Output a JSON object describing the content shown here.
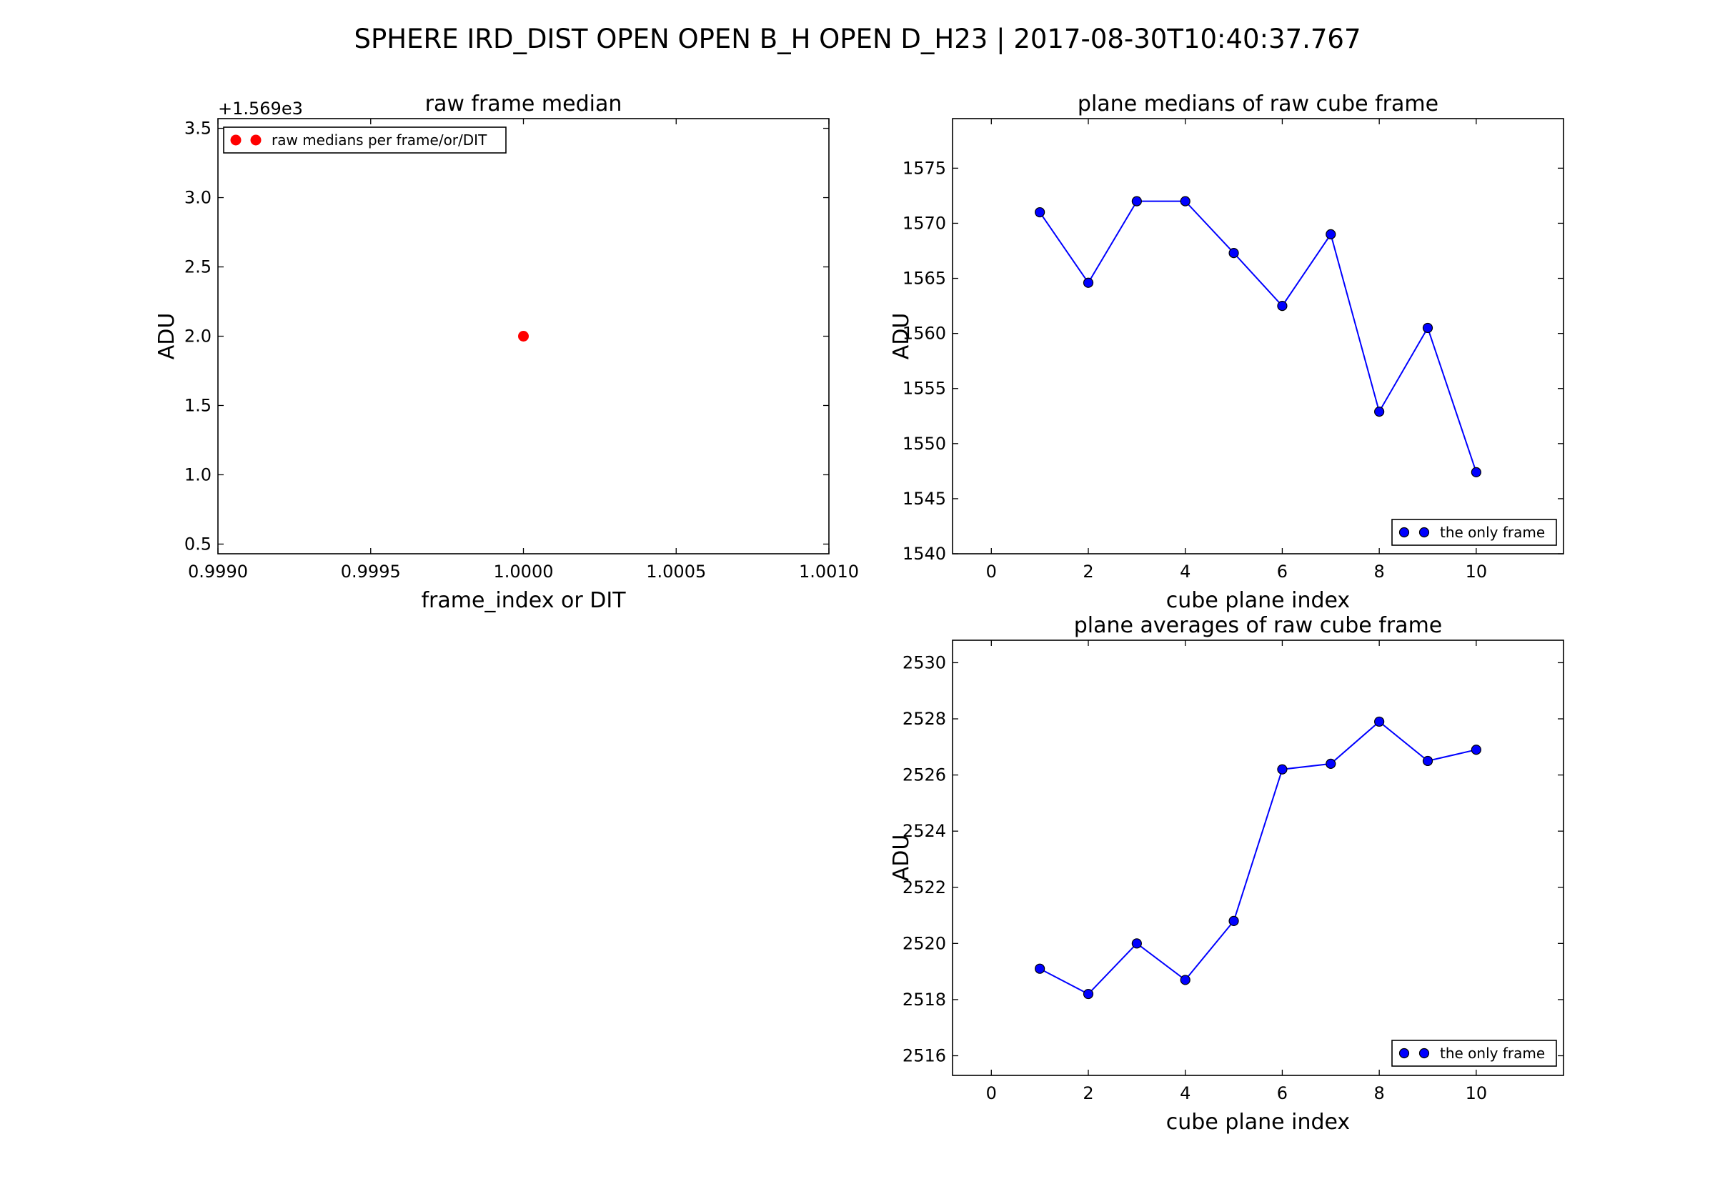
{
  "figure": {
    "title": "SPHERE IRD_DIST   OPEN  OPEN  B_H  OPEN  D_H23  |  2017-08-30T10:40:37.767"
  },
  "colors": {
    "red_series": "#ff0000",
    "blue_series": "#0000ff",
    "blue_line": "#0000ff"
  },
  "chart_data": [
    {
      "type": "scatter",
      "title": "raw frame median",
      "xlabel": "frame_index or DIT",
      "ylabel": "ADU",
      "y_offset_text": "+1.569e3",
      "xlim": [
        0.999,
        1.001
      ],
      "ylim": [
        0.43,
        3.57
      ],
      "xticks": [
        0.999,
        0.9995,
        1.0,
        1.0005,
        1.001
      ],
      "xtick_labels": [
        "0.9990",
        "0.9995",
        "1.0000",
        "1.0005",
        "1.0010"
      ],
      "yticks": [
        0.5,
        1.0,
        1.5,
        2.0,
        2.5,
        3.0,
        3.5
      ],
      "ytick_labels": [
        "0.5",
        "1.0",
        "1.5",
        "2.0",
        "2.5",
        "3.0",
        "3.5"
      ],
      "grid": false,
      "legend_position": "top-left",
      "series": [
        {
          "name": "raw medians per frame/or/DIT",
          "x": [
            1.0
          ],
          "y": [
            2.0
          ],
          "marker": "circle",
          "line": false,
          "color": "#ff0000"
        }
      ]
    },
    {
      "type": "line",
      "title": "plane medians of raw cube frame",
      "xlabel": "cube plane index",
      "ylabel": "ADU",
      "xlim": [
        -0.8,
        11.8
      ],
      "ylim": [
        1540,
        1579.5
      ],
      "xticks": [
        0,
        2,
        4,
        6,
        8,
        10
      ],
      "xtick_labels": [
        "0",
        "2",
        "4",
        "6",
        "8",
        "10"
      ],
      "yticks": [
        1540,
        1545,
        1550,
        1555,
        1560,
        1565,
        1570,
        1575
      ],
      "ytick_labels": [
        "1540",
        "1545",
        "1550",
        "1555",
        "1560",
        "1565",
        "1570",
        "1575"
      ],
      "grid": false,
      "legend_position": "bottom-right",
      "series": [
        {
          "name": "the only frame",
          "x": [
            1,
            2,
            3,
            4,
            5,
            6,
            7,
            8,
            9,
            10
          ],
          "y": [
            1571.0,
            1564.6,
            1572.0,
            1572.0,
            1567.3,
            1562.5,
            1569.0,
            1552.9,
            1560.5,
            1547.4
          ],
          "marker": "circle",
          "line": true,
          "color": "#0000ff"
        }
      ]
    },
    {
      "type": "line",
      "title": "plane averages of raw cube frame",
      "xlabel": "cube plane index",
      "ylabel": "ADU",
      "xlim": [
        -0.8,
        11.8
      ],
      "ylim": [
        2515.3,
        2530.8
      ],
      "xticks": [
        0,
        2,
        4,
        6,
        8,
        10
      ],
      "xtick_labels": [
        "0",
        "2",
        "4",
        "6",
        "8",
        "10"
      ],
      "yticks": [
        2516,
        2518,
        2520,
        2522,
        2524,
        2526,
        2528,
        2530
      ],
      "ytick_labels": [
        "2516",
        "2518",
        "2520",
        "2522",
        "2524",
        "2526",
        "2528",
        "2530"
      ],
      "grid": false,
      "legend_position": "bottom-right",
      "series": [
        {
          "name": "the only frame",
          "x": [
            1,
            2,
            3,
            4,
            5,
            6,
            7,
            8,
            9,
            10
          ],
          "y": [
            2519.1,
            2518.2,
            2520.0,
            2518.7,
            2520.8,
            2526.2,
            2526.4,
            2527.9,
            2526.5,
            2526.9
          ],
          "marker": "circle",
          "line": true,
          "color": "#0000ff"
        }
      ]
    }
  ]
}
